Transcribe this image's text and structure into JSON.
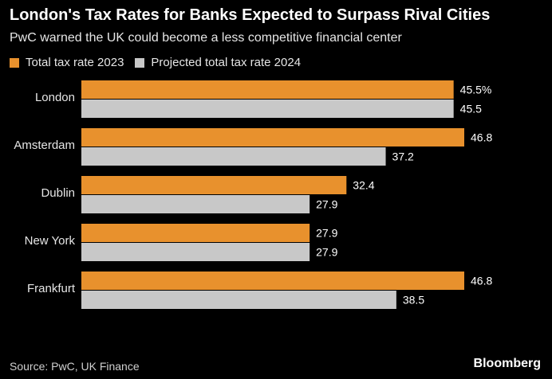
{
  "chart_data": {
    "type": "bar",
    "orientation": "horizontal",
    "title": "London's Tax Rates for Banks Expected to Surpass Rival Cities",
    "subtitle": "PwC warned the UK could become a less competitive financial center",
    "categories": [
      "London",
      "Amsterdam",
      "Dublin",
      "New York",
      "Frankfurt"
    ],
    "series": [
      {
        "name": "Total tax rate 2023",
        "color": "#e8912d",
        "values": [
          45.5,
          46.8,
          32.4,
          27.9,
          46.8
        ],
        "labels": [
          "45.5%",
          "46.8",
          "32.4",
          "27.9",
          "46.8"
        ]
      },
      {
        "name": "Projected total tax rate 2024",
        "color": "#c8c8c8",
        "values": [
          45.5,
          37.2,
          27.9,
          27.9,
          38.5
        ],
        "labels": [
          "45.5",
          "37.2",
          "27.9",
          "27.9",
          "38.5"
        ]
      }
    ],
    "xlim": [
      0,
      46.8
    ],
    "source": "Source: PwC, UK Finance",
    "brand": "Bloomberg"
  }
}
